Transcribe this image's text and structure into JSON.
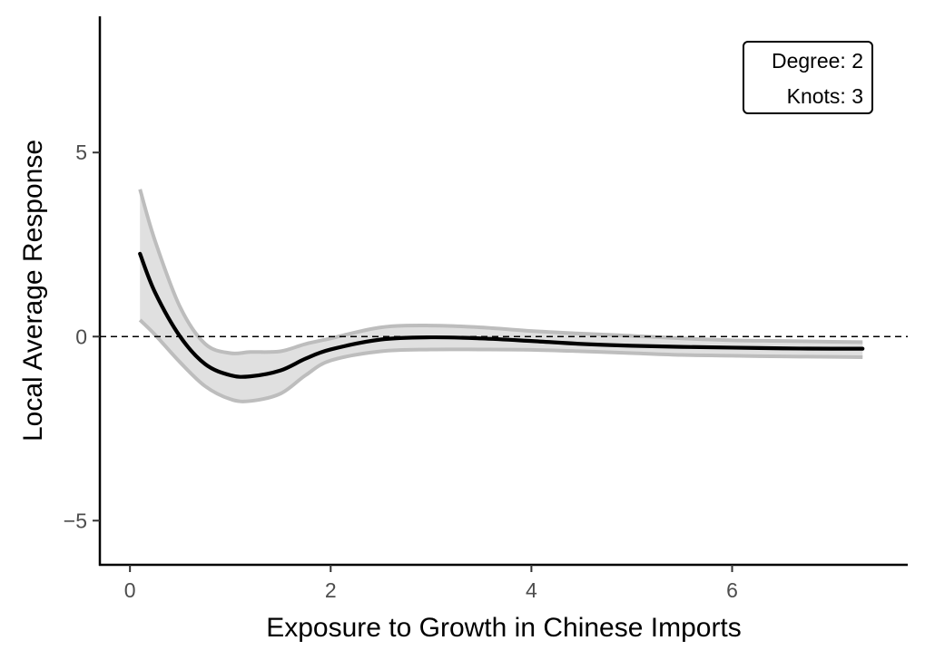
{
  "chart_data": {
    "type": "line",
    "title": "",
    "xlabel": "Exposure to Growth in Chinese Imports",
    "ylabel": "Local Average Response",
    "xlim": [
      -0.3,
      7.75
    ],
    "ylim": [
      -6.2,
      8.7
    ],
    "x_ticks": [
      0,
      2,
      4,
      6
    ],
    "x_tick_labels": [
      "0",
      "2",
      "4",
      "6"
    ],
    "y_ticks": [
      -5,
      0,
      5
    ],
    "y_tick_labels": [
      "−5",
      "0",
      "5"
    ],
    "grid": false,
    "reference_line": {
      "y": 0,
      "style": "dashed"
    },
    "annotation": {
      "lines": [
        "Degree: 2",
        "Knots: 3"
      ],
      "placement": "top-right"
    },
    "colors": {
      "line": "#000000",
      "band_fill": "#e0e0e0",
      "band_edge": "#bdbdbd",
      "axis": "#000000"
    },
    "series": [
      {
        "x": [
          0.1,
          0.25,
          0.5,
          0.75,
          1.0,
          1.2,
          1.5,
          1.75,
          2.0,
          2.5,
          3.0,
          3.5,
          4.0,
          4.5,
          5.0,
          5.5,
          6.0,
          6.5,
          7.0,
          7.3
        ],
        "y": [
          2.25,
          1.2,
          0.0,
          -0.75,
          -1.05,
          -1.08,
          -0.92,
          -0.6,
          -0.35,
          -0.08,
          -0.02,
          -0.05,
          -0.12,
          -0.2,
          -0.25,
          -0.28,
          -0.3,
          -0.32,
          -0.33,
          -0.33
        ],
        "lower": [
          0.45,
          0.05,
          -0.7,
          -1.35,
          -1.7,
          -1.75,
          -1.55,
          -1.05,
          -0.65,
          -0.4,
          -0.35,
          -0.35,
          -0.36,
          -0.4,
          -0.45,
          -0.5,
          -0.52,
          -0.54,
          -0.55,
          -0.56
        ],
        "upper": [
          4.0,
          2.6,
          0.8,
          -0.2,
          -0.45,
          -0.42,
          -0.4,
          -0.2,
          -0.05,
          0.25,
          0.3,
          0.25,
          0.15,
          0.08,
          0.02,
          -0.05,
          -0.1,
          -0.12,
          -0.14,
          -0.15
        ]
      }
    ]
  }
}
